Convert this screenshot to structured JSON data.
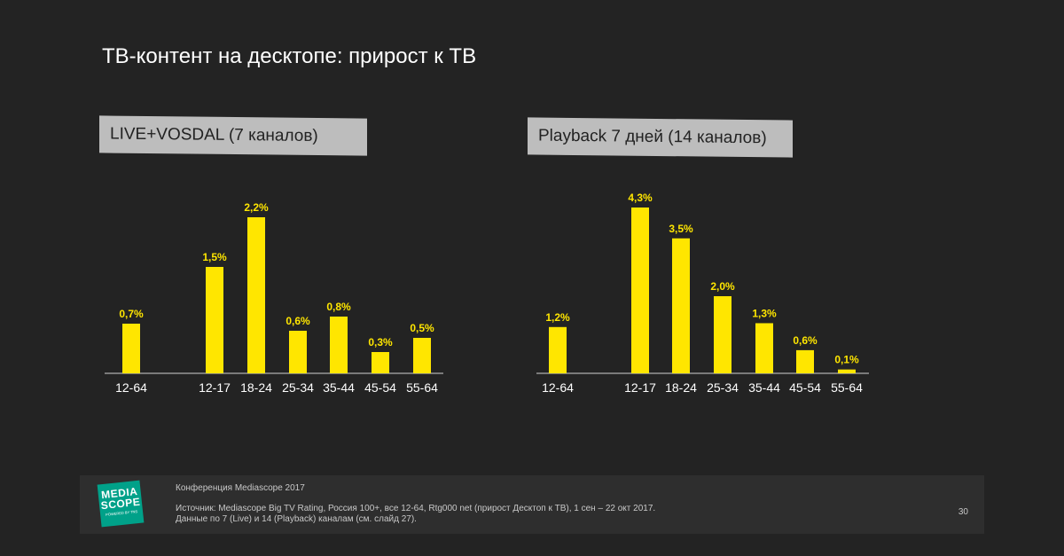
{
  "slide": {
    "title": "ТВ-контент на десктопе: прирост к ТВ"
  },
  "chart_data": [
    {
      "type": "bar",
      "title": "LIVE+VOSDAL (7 каналов)",
      "categories": [
        "12-64",
        "12-17",
        "18-24",
        "25-34",
        "35-44",
        "45-54",
        "55-64"
      ],
      "values": [
        0.7,
        1.5,
        2.2,
        0.6,
        0.8,
        0.3,
        0.5
      ],
      "labels": [
        "0,7%",
        "1,5%",
        "2,2%",
        "0,6%",
        "0,8%",
        "0,3%",
        "0,5%"
      ],
      "color": "#ffe600",
      "label_color": "#ffe600"
    },
    {
      "type": "bar",
      "title": "Playback 7 дней (14 каналов)",
      "categories": [
        "12-64",
        "12-17",
        "18-24",
        "25-34",
        "35-44",
        "45-54",
        "55-64"
      ],
      "values": [
        1.2,
        4.3,
        3.5,
        2.0,
        1.3,
        0.6,
        0.1
      ],
      "labels": [
        "1,2%",
        "4,3%",
        "3,5%",
        "2,0%",
        "1,3%",
        "0,6%",
        "0,1%"
      ],
      "color": "#ffe600",
      "label_color": "#ffe600"
    }
  ],
  "footer": {
    "logo_line1": "MEDIA",
    "logo_line2": "SCOPE",
    "logo_sub": "POWERED BY TNS",
    "conference": "Конференция Mediascope 2017",
    "source_line1": "Источник: Mediascope Big TV Rating, Россия 100+, все 12-64, Rtg000 net (прирост Десктоп к ТВ), 1 сен – 22 окт 2017.",
    "source_line2": "Данные по 7 (Live) и 14 (Playback) каналам (см. слайд 27).",
    "page_number": "30"
  },
  "colors": {
    "background": "#232323",
    "bar": "#ffe600",
    "tab": "#bdbdbd",
    "accent_logo": "#00a189"
  }
}
